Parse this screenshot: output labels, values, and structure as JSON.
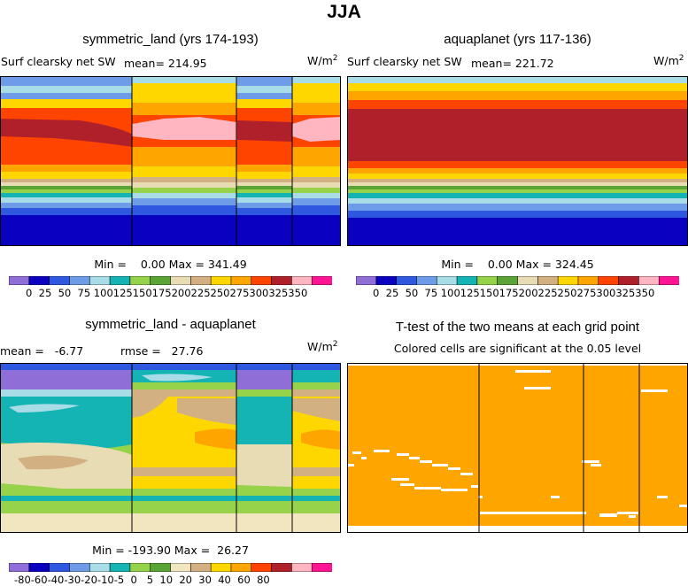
{
  "figure_title": "JJA",
  "colors": {
    "abs_palette": [
      "#8f6ed8",
      "#0a00c0",
      "#2e58e0",
      "#6f9ce8",
      "#a8dce6",
      "#14b4b4",
      "#96d24a",
      "#5aa436",
      "#e8dcb4",
      "#d2b082",
      "#ffd700",
      "#ffa500",
      "#ff4400",
      "#b0202a",
      "#ffb6c1",
      "#ff1493"
    ],
    "diff_palette": [
      "#8f6ed8",
      "#0a00c0",
      "#2e58e0",
      "#6f9ce8",
      "#a8dce6",
      "#14b4b4",
      "#96d24a",
      "#5aa436",
      "#f2e6c0",
      "#d2b082",
      "#ffd700",
      "#ffa500",
      "#ff4400",
      "#b0202a",
      "#ffb6c1",
      "#ff1493"
    ],
    "signif": "#ffa500"
  },
  "chart_data": [
    {
      "id": "symmetric_land",
      "type": "heatmap",
      "title": "symmetric_land (yrs 174-193)",
      "variable": "Surf clearsky net SW",
      "mean_label": "mean= 214.95",
      "units": "W/m",
      "units_exp": "2",
      "min_max_label": "Min =    0.00 Max = 341.49",
      "min": 0.0,
      "max": 341.49,
      "mean": 214.95,
      "colorbar_ticks": [
        "0",
        "25",
        "50",
        "75",
        "100",
        "125",
        "150",
        "175",
        "200",
        "225",
        "250",
        "275",
        "300",
        "325",
        "350"
      ],
      "colorbar_label": "0  25  50  75 100125150175200225250275300325350"
    },
    {
      "id": "aquaplanet",
      "type": "heatmap",
      "title": "aquaplanet (yrs 117-136)",
      "variable": "Surf clearsky net SW",
      "mean_label": "mean= 221.72",
      "units": "W/m",
      "units_exp": "2",
      "min_max_label": "Min =    0.00 Max = 324.45",
      "min": 0.0,
      "max": 324.45,
      "mean": 221.72,
      "colorbar_ticks": [
        "0",
        "25",
        "50",
        "75",
        "100",
        "125",
        "150",
        "175",
        "200",
        "225",
        "250",
        "275",
        "300",
        "325",
        "350"
      ],
      "colorbar_label": "0  25  50  75 100125150175200225250275300325350"
    },
    {
      "id": "difference",
      "type": "heatmap",
      "title": "symmetric_land - aquaplanet",
      "mean_label": "mean =   -6.77",
      "rmse_label": "rmse =   27.76",
      "units": "W/m",
      "units_exp": "2",
      "min_max_label": "Min = -193.90 Max =  26.27",
      "mean": -6.77,
      "rmse": 27.76,
      "min": -193.9,
      "max": 26.27,
      "colorbar_ticks": [
        "-80",
        "-60",
        "-40",
        "-30",
        "-20",
        "-10",
        "-5",
        "0",
        "5",
        "10",
        "20",
        "30",
        "40",
        "60",
        "80"
      ],
      "colorbar_label": "-80-60-40-30-20-10-5  0   5  10  20  30  40  60  80"
    },
    {
      "id": "ttest",
      "type": "heatmap",
      "title": "T-test of the two means at each grid point",
      "subtitle": "Colored cells are significant at the 0.05 level"
    }
  ]
}
